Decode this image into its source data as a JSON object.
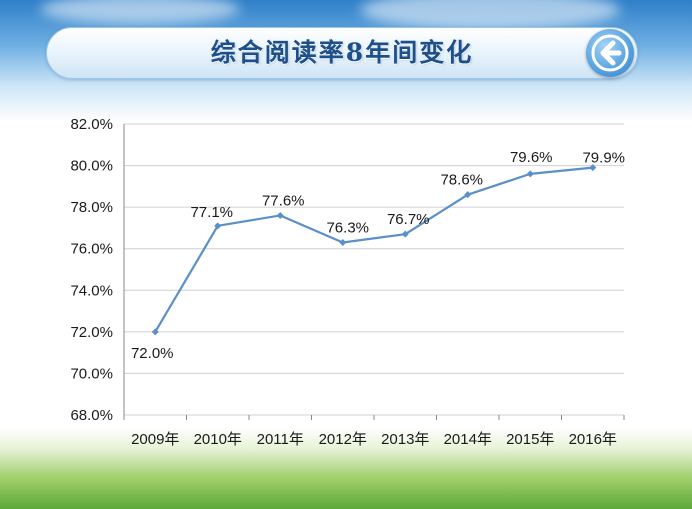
{
  "header": {
    "title": "综合阅读率8年间变化",
    "back_icon": "back-arrow-icon"
  },
  "colors": {
    "line": "#5b8fc7",
    "grid": "#d0d0d0",
    "title": "#1d4f8a"
  },
  "chart_data": {
    "type": "line",
    "title": "",
    "xlabel": "",
    "ylabel": "",
    "categories": [
      "2009年",
      "2010年",
      "2011年",
      "2012年",
      "2013年",
      "2014年",
      "2015年",
      "2016年"
    ],
    "series": [
      {
        "values": [
          72.0,
          77.1,
          77.6,
          76.3,
          76.7,
          78.6,
          79.6,
          79.9
        ]
      }
    ],
    "data_labels": [
      "72.0%",
      "77.1%",
      "77.6%",
      "76.3%",
      "76.7%",
      "78.6%",
      "79.6%",
      "79.9%"
    ],
    "ylim": [
      68.0,
      82.0
    ],
    "yticks": [
      68.0,
      70.0,
      72.0,
      74.0,
      76.0,
      78.0,
      80.0,
      82.0
    ],
    "ytick_labels": [
      "68.0%",
      "70.0%",
      "72.0%",
      "74.0%",
      "76.0%",
      "78.0%",
      "80.0%",
      "82.0%"
    ],
    "grid": true,
    "legend": "none"
  }
}
